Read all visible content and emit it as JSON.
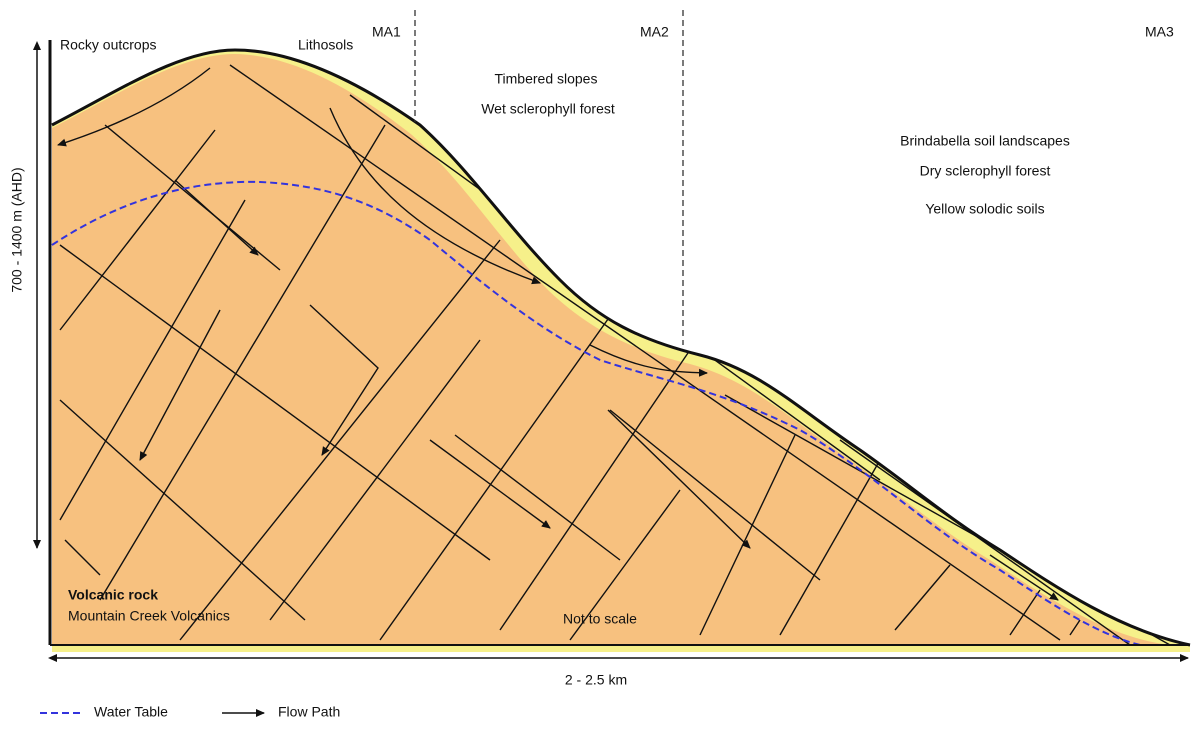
{
  "labels": {
    "rocky_outcrops": "Rocky outcrops",
    "lithosols": "Lithosols",
    "ma1": "MA1",
    "ma2": "MA2",
    "ma3": "MA3",
    "timbered_slopes": "Timbered slopes",
    "wet_forest": "Wet sclerophyll forest",
    "brindabella": "Brindabella soil landscapes",
    "dry_forest": "Dry sclerophyll forest",
    "yellow_soils": "Yellow solodic soils",
    "volcanic_rock": "Volcanic rock",
    "mountain_creek": "Mountain Creek Volcanics",
    "not_to_scale": "Not to scale"
  },
  "axes": {
    "vertical": "700 - 1400 m (AHD)",
    "horizontal": "2 - 2.5 km"
  },
  "legend": {
    "water_table": "Water Table",
    "flow_path": "Flow Path"
  }
}
